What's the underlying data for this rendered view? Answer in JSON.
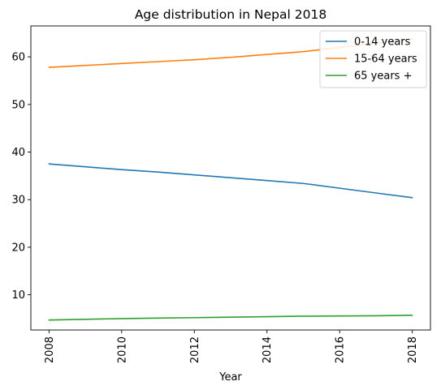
{
  "chart_data": {
    "type": "line",
    "title": "Age distribution in Nepal 2018",
    "xlabel": "Year",
    "ylabel": "",
    "x": [
      2008,
      2009,
      2010,
      2011,
      2012,
      2013,
      2014,
      2015,
      2016,
      2017,
      2018
    ],
    "xlim": [
      2007.5,
      2018.5
    ],
    "ylim": [
      2.6,
      66.5
    ],
    "xticks": [
      2008,
      2010,
      2012,
      2014,
      2016,
      2018
    ],
    "yticks": [
      10,
      20,
      30,
      40,
      50,
      60
    ],
    "grid": false,
    "legend_position": "top-right",
    "series": [
      {
        "name": "0-14 years",
        "color": "#1f77b4",
        "values": [
          37.5,
          36.9,
          36.3,
          35.8,
          35.2,
          34.6,
          34.0,
          33.4,
          32.4,
          31.4,
          30.4
        ]
      },
      {
        "name": "15-64 years",
        "color": "#ff7f0e",
        "values": [
          57.8,
          58.2,
          58.6,
          59.0,
          59.4,
          59.9,
          60.5,
          61.1,
          62.0,
          62.9,
          63.8
        ]
      },
      {
        "name": "65 years +",
        "color": "#2ca02c",
        "values": [
          4.7,
          4.85,
          5.0,
          5.1,
          5.2,
          5.3,
          5.4,
          5.5,
          5.55,
          5.6,
          5.7
        ]
      }
    ]
  }
}
